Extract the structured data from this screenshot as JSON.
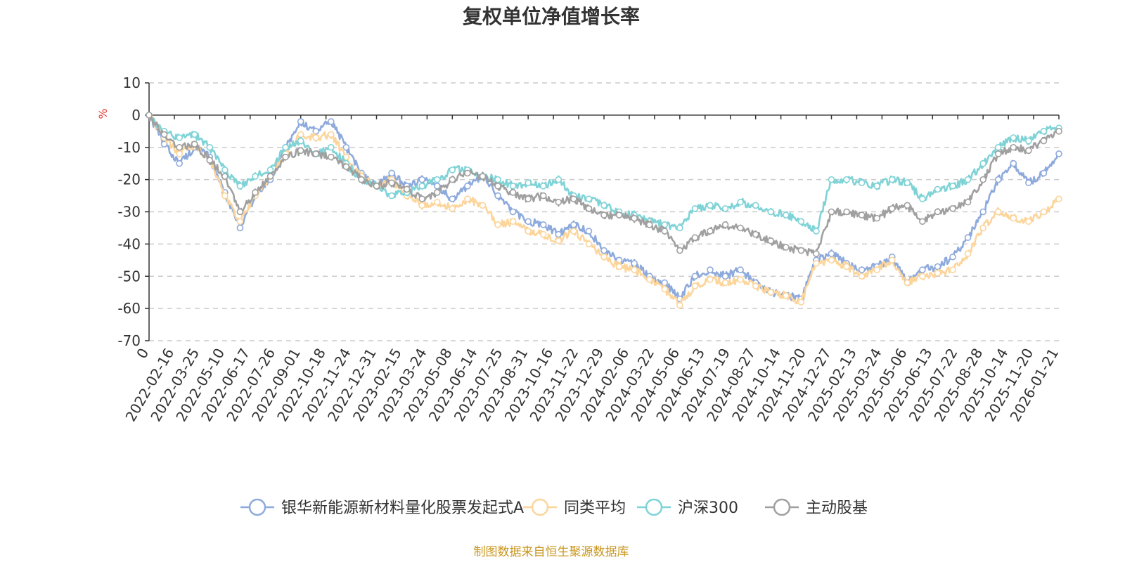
{
  "chart_data": {
    "type": "line",
    "title": "复权单位净值增长率",
    "ylabel": "%",
    "ylim": [
      -70,
      10
    ],
    "yticks": [
      10,
      0,
      -10,
      -20,
      -30,
      -40,
      -50,
      -60,
      -70
    ],
    "x_tick_labels": [
      "0",
      "2022-02-16",
      "2022-03-25",
      "2022-05-10",
      "2022-06-17",
      "2022-07-26",
      "2022-09-01",
      "2022-10-18",
      "2022-11-24",
      "2022-12-31",
      "2023-02-15",
      "2023-03-24",
      "2023-05-08",
      "2023-06-14",
      "2023-07-25",
      "2023-08-31",
      "2023-10-16",
      "2023-11-22",
      "2023-12-29",
      "2024-02-06",
      "2024-03-22",
      "2024-05-06",
      "2024-06-13",
      "2024-07-19",
      "2024-08-27",
      "2024-10-14",
      "2024-11-20",
      "2024-12-27",
      "2025-02-13",
      "2025-03-24",
      "2025-05-06",
      "2025-06-13",
      "2025-07-22",
      "2025-08-28",
      "2025-10-14",
      "2025-11-20",
      "2026-01-21"
    ],
    "series": [
      {
        "name": "银华新能源新材料量化股票发起式A",
        "color": "#8eaadc",
        "values": [
          0,
          -9,
          -15,
          -10,
          -13,
          -24,
          -35,
          -25,
          -20,
          -10,
          -2,
          -5,
          -2,
          -10,
          -18,
          -22,
          -18,
          -22,
          -20,
          -22,
          -26,
          -22,
          -19,
          -25,
          -30,
          -33,
          -34,
          -37,
          -34,
          -36,
          -42,
          -45,
          -46,
          -50,
          -52,
          -57,
          -50,
          -48,
          -50,
          -48,
          -52,
          -55,
          -56,
          -57,
          -45,
          -43,
          -46,
          -48,
          -47,
          -44,
          -52,
          -48,
          -47,
          -44,
          -38,
          -30,
          -20,
          -15,
          -21,
          -18,
          -12
        ]
      },
      {
        "name": "同类平均",
        "color": "#fcd59b",
        "values": [
          0,
          -7,
          -12,
          -9,
          -14,
          -25,
          -33,
          -25,
          -19,
          -12,
          -6,
          -7,
          -6,
          -13,
          -19,
          -22,
          -20,
          -25,
          -28,
          -27,
          -29,
          -26,
          -28,
          -34,
          -33,
          -36,
          -37,
          -39,
          -36,
          -40,
          -44,
          -47,
          -48,
          -51,
          -54,
          -59,
          -53,
          -51,
          -52,
          -51,
          -53,
          -55,
          -56,
          -58,
          -46,
          -45,
          -47,
          -50,
          -48,
          -45,
          -52,
          -50,
          -49,
          -48,
          -43,
          -35,
          -30,
          -32,
          -33,
          -30,
          -26
        ]
      },
      {
        "name": "沪深300",
        "color": "#7fd3d6",
        "values": [
          0,
          -5,
          -7,
          -6,
          -10,
          -17,
          -22,
          -19,
          -17,
          -10,
          -8,
          -12,
          -10,
          -15,
          -20,
          -22,
          -25,
          -24,
          -22,
          -20,
          -17,
          -17,
          -19,
          -20,
          -22,
          -21,
          -22,
          -20,
          -25,
          -26,
          -28,
          -30,
          -31,
          -33,
          -34,
          -35,
          -29,
          -28,
          -29,
          -27,
          -28,
          -30,
          -31,
          -33,
          -36,
          -20,
          -20,
          -21,
          -22,
          -20,
          -21,
          -26,
          -23,
          -22,
          -20,
          -15,
          -10,
          -7,
          -8,
          -5,
          -4
        ]
      },
      {
        "name": "主动股基",
        "color": "#a0a0a0",
        "values": [
          0,
          -6,
          -10,
          -9,
          -14,
          -19,
          -30,
          -24,
          -19,
          -13,
          -11,
          -12,
          -13,
          -16,
          -20,
          -22,
          -21,
          -23,
          -26,
          -24,
          -20,
          -18,
          -19,
          -22,
          -24,
          -26,
          -25,
          -27,
          -26,
          -29,
          -31,
          -31,
          -32,
          -34,
          -36,
          -42,
          -38,
          -36,
          -34,
          -35,
          -37,
          -39,
          -41,
          -42,
          -43,
          -30,
          -30,
          -31,
          -32,
          -29,
          -28,
          -33,
          -30,
          -29,
          -27,
          -20,
          -12,
          -10,
          -11,
          -8,
          -5
        ]
      }
    ]
  },
  "source_note": "制图数据来自恒生聚源数据库"
}
